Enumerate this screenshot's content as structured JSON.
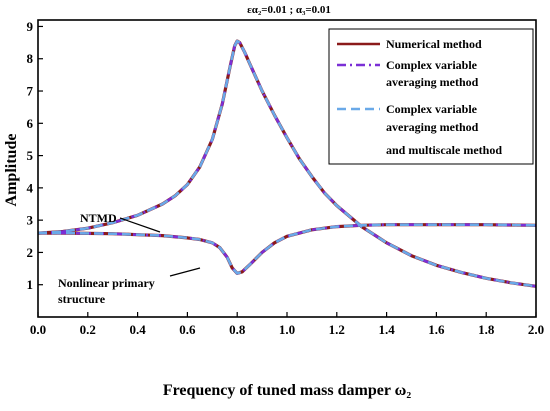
{
  "chart_data": {
    "type": "line",
    "title": "εα₂=0.01 ; α₃=0.01",
    "xlabel": "Frequency of tuned mass damper ω₂",
    "ylabel": "Amplitude",
    "xlim": [
      0.0,
      2.0
    ],
    "ylim": [
      0,
      9.2
    ],
    "xticks": [
      "0.0",
      "0.2",
      "0.4",
      "0.6",
      "0.8",
      "1.0",
      "1.2",
      "1.4",
      "1.6",
      "1.8",
      "2.0"
    ],
    "yticks": [
      "1",
      "2",
      "3",
      "4",
      "5",
      "6",
      "7",
      "8",
      "9"
    ],
    "legend_position": "top-right",
    "methods": [
      {
        "name": "Numerical method",
        "color": "#8b1a1a",
        "dash": "solid"
      },
      {
        "name": "Complex variable averaging method",
        "color": "#7b2fd6",
        "dash": "dashdot"
      },
      {
        "name": "Complex variable averaging method and multiscale method",
        "color": "#6aa9e8",
        "dash": "dashed"
      }
    ],
    "curves": [
      {
        "label": "NTMD",
        "x": [
          0.0,
          0.05,
          0.1,
          0.2,
          0.3,
          0.4,
          0.5,
          0.55,
          0.6,
          0.65,
          0.7,
          0.74,
          0.77,
          0.79,
          0.8,
          0.81,
          0.83,
          0.85,
          0.9,
          0.95,
          1.0,
          1.05,
          1.1,
          1.15,
          1.2,
          1.3,
          1.4,
          1.5,
          1.6,
          1.7,
          1.8,
          1.9,
          2.0
        ],
        "y": [
          2.6,
          2.62,
          2.65,
          2.75,
          2.92,
          3.15,
          3.5,
          3.75,
          4.1,
          4.65,
          5.5,
          6.6,
          7.7,
          8.4,
          8.55,
          8.5,
          8.2,
          7.85,
          7.0,
          6.25,
          5.55,
          4.9,
          4.35,
          3.85,
          3.45,
          2.8,
          2.3,
          1.9,
          1.6,
          1.38,
          1.2,
          1.06,
          0.95
        ]
      },
      {
        "label": "Nonlinear primary structure",
        "x": [
          0.0,
          0.1,
          0.2,
          0.3,
          0.4,
          0.5,
          0.6,
          0.65,
          0.7,
          0.73,
          0.76,
          0.78,
          0.8,
          0.82,
          0.85,
          0.9,
          0.95,
          1.0,
          1.1,
          1.2,
          1.3,
          1.4,
          1.5,
          1.6,
          1.7,
          1.8,
          1.9,
          2.0
        ],
        "y": [
          2.6,
          2.6,
          2.59,
          2.58,
          2.55,
          2.52,
          2.45,
          2.4,
          2.3,
          2.15,
          1.85,
          1.52,
          1.35,
          1.4,
          1.62,
          2.0,
          2.3,
          2.5,
          2.7,
          2.8,
          2.84,
          2.86,
          2.86,
          2.86,
          2.86,
          2.86,
          2.85,
          2.84
        ]
      }
    ]
  }
}
